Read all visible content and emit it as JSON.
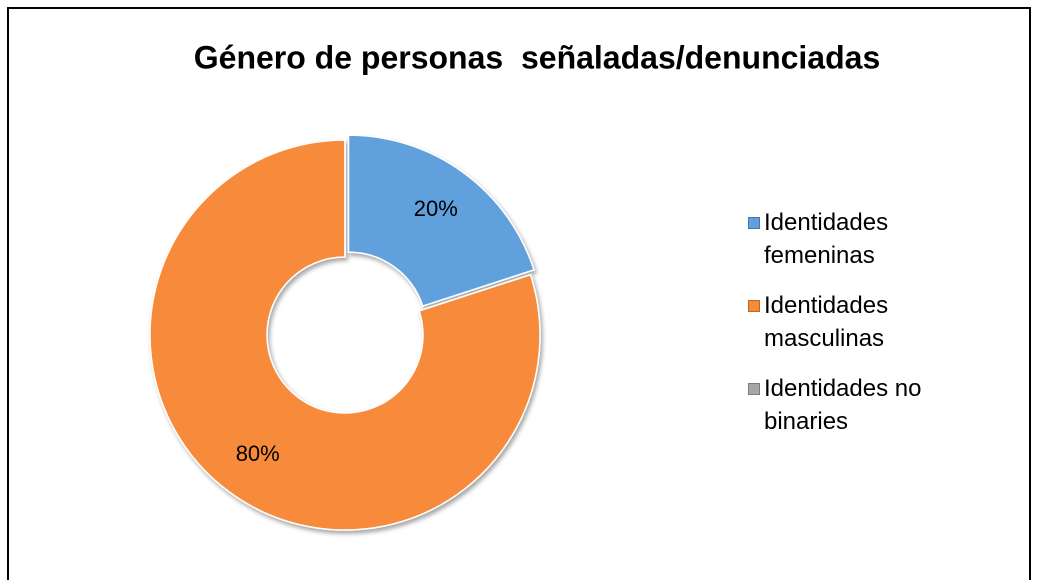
{
  "chart_data": {
    "type": "donut",
    "title": "Género de personas  señaladas/denunciadas",
    "categories": [
      "Identidades femeninas",
      "Identidades masculinas",
      "Identidades no binaries"
    ],
    "values": [
      20,
      80,
      0
    ],
    "value_labels": [
      "20%",
      "80%",
      null
    ],
    "colors": [
      "#5fa0dd",
      "#f78b3b",
      "#a6a6a6"
    ],
    "legend": "right"
  }
}
